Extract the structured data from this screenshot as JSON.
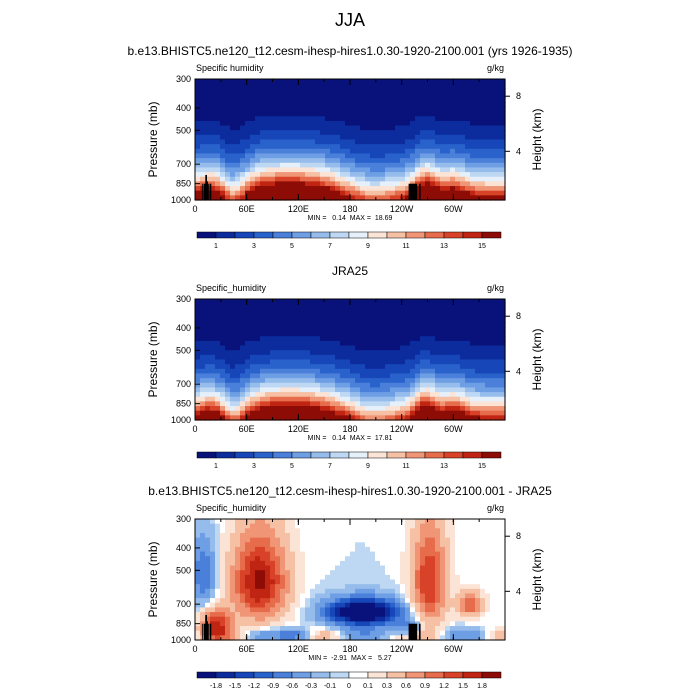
{
  "figure": {
    "title": "JJA"
  },
  "chart_data": [
    {
      "type": "heatmap",
      "title": "b.e13.BHISTC5.ne120_t12.cesm-ihesp-hires1.0.30-1920-2100.001 (yrs 1926-1935)",
      "left_label": "Specific humidity",
      "right_label": "g/kg",
      "ylabel": "Pressure (mb)",
      "ylabel_right": "Height (km)",
      "x_ticks": [
        "0",
        "60E",
        "120E",
        "180",
        "120W",
        "60W"
      ],
      "y_ticks": [
        "300",
        "400",
        "500",
        "700",
        "850",
        "1000"
      ],
      "y_ticks_right": [
        "8",
        "4"
      ],
      "stats": "MIN =   0.14  MAX =  18.69",
      "colorbar_labels": [
        "1",
        "3",
        "5",
        "7",
        "9",
        "11",
        "13",
        "15"
      ],
      "colorbar_colors": [
        "#08127a",
        "#0c2c9e",
        "#1646b8",
        "#2a62cc",
        "#4a80da",
        "#6e9ee4",
        "#96bcec",
        "#bed8f4",
        "#e6f0fb",
        "#fbe4d6",
        "#f6c0a4",
        "#f09676",
        "#e66c4c",
        "#d84228",
        "#c02412",
        "#8e0c06"
      ],
      "field": "sh_model"
    },
    {
      "type": "heatmap",
      "title": "JRA25",
      "left_label": "Specific_humidity",
      "right_label": "g/kg",
      "ylabel": "Pressure (mb)",
      "ylabel_right": "Height (km)",
      "x_ticks": [
        "0",
        "60E",
        "120E",
        "180",
        "120W",
        "60W"
      ],
      "y_ticks": [
        "300",
        "400",
        "500",
        "700",
        "850",
        "1000"
      ],
      "y_ticks_right": [
        "8",
        "4"
      ],
      "stats": "MIN =   0.14  MAX =  17.81",
      "colorbar_labels": [
        "1",
        "3",
        "5",
        "7",
        "9",
        "11",
        "13",
        "15"
      ],
      "colorbar_colors": [
        "#08127a",
        "#0c2c9e",
        "#1646b8",
        "#2a62cc",
        "#4a80da",
        "#6e9ee4",
        "#96bcec",
        "#bed8f4",
        "#e6f0fb",
        "#fbe4d6",
        "#f6c0a4",
        "#f09676",
        "#e66c4c",
        "#d84228",
        "#c02412",
        "#8e0c06"
      ],
      "field": "sh_obs"
    },
    {
      "type": "heatmap",
      "title": "b.e13.BHISTC5.ne120_t12.cesm-ihesp-hires1.0.30-1920-2100.001 - JRA25",
      "left_label": "Specific_humidity",
      "right_label": "g/kg",
      "ylabel": "Pressure (mb)",
      "ylabel_right": "Height (km)",
      "x_ticks": [
        "0",
        "60E",
        "120E",
        "180",
        "120W",
        "60W"
      ],
      "y_ticks": [
        "300",
        "400",
        "500",
        "700",
        "850",
        "1000"
      ],
      "y_ticks_right": [
        "8",
        "4"
      ],
      "stats": "MIN =  -2.91  MAX =   5.27",
      "colorbar_labels": [
        "-1.8",
        "-1.5",
        "-1.2",
        "-0.9",
        "-0.6",
        "-0.3",
        "-0.1",
        "0",
        "0.1",
        "0.3",
        "0.6",
        "0.9",
        "1.2",
        "1.5",
        "1.8"
      ],
      "colorbar_colors": [
        "#08127a",
        "#0c2c9e",
        "#1646b8",
        "#2a62cc",
        "#4a80da",
        "#6e9ee4",
        "#96bcec",
        "#bed8f4",
        "#ffffff",
        "#fbe4d6",
        "#f6c0a4",
        "#f09676",
        "#e66c4c",
        "#d84228",
        "#c02412",
        "#8e0c06"
      ],
      "field": "sh_diff"
    }
  ]
}
